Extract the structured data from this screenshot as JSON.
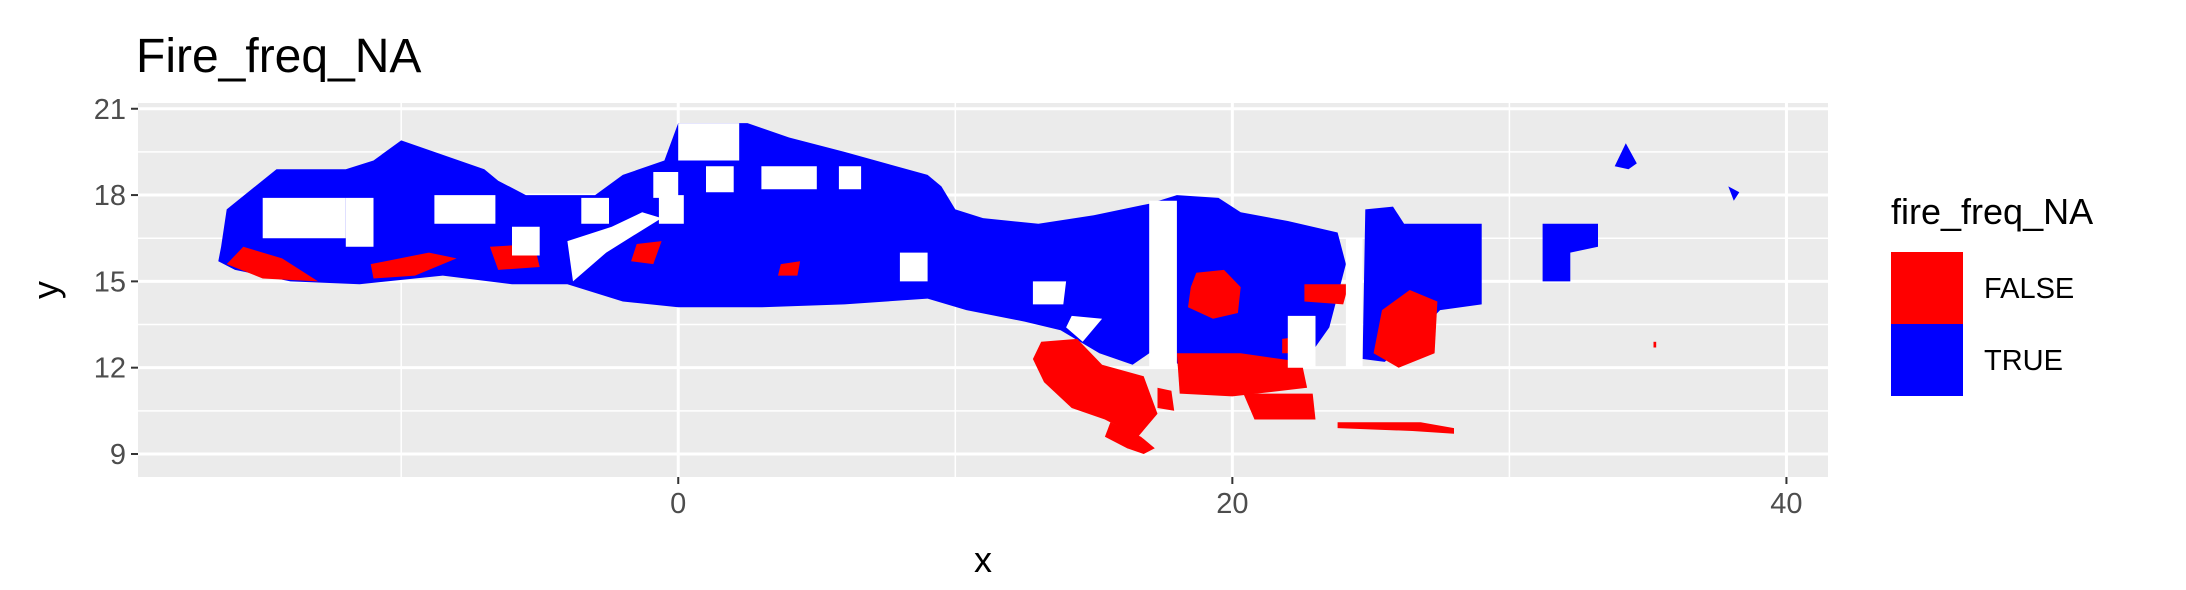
{
  "chart_data": {
    "type": "raster",
    "title": "Fire_freq_NA",
    "xlabel": "x",
    "ylabel": "y",
    "xlim": [
      -19.5,
      41.5
    ],
    "ylim": [
      8.2,
      21.2
    ],
    "x_ticks": [
      0,
      20,
      40
    ],
    "y_ticks": [
      9,
      12,
      15,
      18,
      21
    ],
    "grid": true,
    "legend": {
      "title": "fire_freq_NA",
      "placement": "right",
      "entries": [
        {
          "label": "FALSE",
          "color": "#ff0000"
        },
        {
          "label": "TRUE",
          "color": "#0000ff"
        }
      ]
    },
    "series": [
      {
        "name": "TRUE",
        "color": "#0000ff",
        "regions": [
          [
            [
              -16.5,
              16.2
            ],
            [
              -16.3,
              17.5
            ],
            [
              -14.5,
              18.9
            ],
            [
              -12,
              18.9
            ],
            [
              -11,
              19.2
            ],
            [
              -10,
              19.9
            ],
            [
              -7,
              18.9
            ],
            [
              -6.5,
              18.5
            ],
            [
              -5.5,
              18
            ],
            [
              -3,
              18
            ],
            [
              -2,
              18.7
            ],
            [
              -0.5,
              19.2
            ],
            [
              0,
              20.5
            ],
            [
              2.5,
              20.5
            ],
            [
              4,
              20
            ],
            [
              6,
              19.5
            ],
            [
              9,
              18.7
            ],
            [
              9.5,
              18.3
            ],
            [
              10,
              17.5
            ],
            [
              11,
              17.2
            ],
            [
              13,
              17
            ],
            [
              15,
              17.3
            ],
            [
              17,
              17.7
            ],
            [
              18,
              18
            ],
            [
              19.5,
              17.9
            ],
            [
              20.3,
              17.4
            ],
            [
              22,
              17.1
            ],
            [
              23.8,
              16.7
            ],
            [
              24.1,
              15.6
            ],
            [
              23.5,
              13.4
            ],
            [
              22.4,
              11.9
            ],
            [
              20,
              11.9
            ],
            [
              18.2,
              12
            ],
            [
              17.3,
              12.7
            ],
            [
              16.4,
              12.1
            ],
            [
              15.2,
              12.5
            ],
            [
              13.8,
              13.3
            ],
            [
              12.5,
              13.6
            ],
            [
              10.4,
              14
            ],
            [
              9,
              14.4
            ],
            [
              6,
              14.2
            ],
            [
              3,
              14.1
            ],
            [
              0,
              14.1
            ],
            [
              -2,
              14.3
            ],
            [
              -4,
              14.9
            ],
            [
              -6,
              14.9
            ],
            [
              -8.5,
              15.2
            ],
            [
              -11.5,
              14.9
            ],
            [
              -14,
              15
            ],
            [
              -16,
              15.4
            ],
            [
              -16.6,
              15.7
            ]
          ],
          [
            [
              24.8,
              17.5
            ],
            [
              25.8,
              17.6
            ],
            [
              26.2,
              17
            ],
            [
              29,
              17
            ],
            [
              29,
              14.2
            ],
            [
              27.5,
              14
            ],
            [
              26.5,
              13
            ],
            [
              25.5,
              12.2
            ],
            [
              24.7,
              12.3
            ]
          ],
          [
            [
              31.2,
              17
            ],
            [
              33.2,
              17
            ],
            [
              33.2,
              16.2
            ],
            [
              32.2,
              16
            ],
            [
              32.2,
              15
            ],
            [
              31.2,
              15
            ]
          ],
          [
            [
              34.2,
              19.8
            ],
            [
              34.6,
              19.1
            ],
            [
              34.3,
              18.9
            ],
            [
              33.8,
              19
            ]
          ],
          [
            [
              37.9,
              18.3
            ],
            [
              38.3,
              18.1
            ],
            [
              38.1,
              17.8
            ]
          ]
        ]
      },
      {
        "name": "FALSE",
        "color": "#ff0000",
        "regions": [
          [
            [
              -16.3,
              15.6
            ],
            [
              -15,
              15.1
            ],
            [
              -13,
              15
            ],
            [
              -14.3,
              15.8
            ],
            [
              -15.7,
              16.2
            ]
          ],
          [
            [
              -11.1,
              15.6
            ],
            [
              -9,
              16
            ],
            [
              -8,
              15.8
            ],
            [
              -9.5,
              15.2
            ],
            [
              -11,
              15.1
            ]
          ],
          [
            [
              -6.8,
              16.2
            ],
            [
              -5.2,
              16.3
            ],
            [
              -5,
              15.5
            ],
            [
              -6.5,
              15.4
            ]
          ],
          [
            [
              -1.5,
              16.3
            ],
            [
              -0.6,
              16.4
            ],
            [
              -0.9,
              15.6
            ],
            [
              -1.7,
              15.7
            ]
          ],
          [
            [
              3.7,
              15.6
            ],
            [
              4.4,
              15.7
            ],
            [
              4.3,
              15.2
            ],
            [
              3.6,
              15.2
            ]
          ],
          [
            [
              13.1,
              12.9
            ],
            [
              14.4,
              13
            ],
            [
              15.3,
              12.1
            ],
            [
              16.8,
              11.7
            ],
            [
              17.3,
              10.4
            ],
            [
              16.6,
              9.6
            ],
            [
              15.4,
              10.2
            ],
            [
              14.2,
              10.6
            ],
            [
              13.2,
              11.5
            ],
            [
              12.8,
              12.3
            ]
          ],
          [
            [
              15.6,
              10.1
            ],
            [
              16.7,
              9.6
            ],
            [
              17.2,
              9.2
            ],
            [
              16.8,
              9
            ],
            [
              16.2,
              9.2
            ],
            [
              15.4,
              9.6
            ]
          ],
          [
            [
              17.3,
              11.3
            ],
            [
              17.8,
              11.2
            ],
            [
              17.9,
              10.5
            ],
            [
              17.3,
              10.6
            ]
          ],
          [
            [
              17.3,
              13.7
            ],
            [
              17.8,
              13.7
            ],
            [
              17.7,
              13.4
            ],
            [
              17.3,
              13.4
            ]
          ],
          [
            [
              18.7,
              15.3
            ],
            [
              19.7,
              15.4
            ],
            [
              20.3,
              14.8
            ],
            [
              20.2,
              13.9
            ],
            [
              19.3,
              13.7
            ],
            [
              18.4,
              14.1
            ],
            [
              18.5,
              14.8
            ]
          ],
          [
            [
              18,
              12.5
            ],
            [
              20.3,
              12.5
            ],
            [
              22.5,
              12.2
            ],
            [
              22.7,
              11.3
            ],
            [
              20,
              11
            ],
            [
              18.1,
              11.1
            ]
          ],
          [
            [
              20.4,
              11.1
            ],
            [
              22.9,
              11.1
            ],
            [
              23,
              10.2
            ],
            [
              20.8,
              10.2
            ]
          ],
          [
            [
              23.8,
              10.1
            ],
            [
              26.8,
              10.1
            ],
            [
              28,
              9.9
            ],
            [
              28,
              9.7
            ],
            [
              26.5,
              9.8
            ],
            [
              23.8,
              9.9
            ]
          ],
          [
            [
              22.6,
              14.9
            ],
            [
              24.2,
              14.9
            ],
            [
              24,
              14.2
            ],
            [
              22.6,
              14.3
            ]
          ],
          [
            [
              21.8,
              13
            ],
            [
              22.6,
              13.1
            ],
            [
              22.4,
              12.5
            ],
            [
              21.8,
              12.5
            ]
          ],
          [
            [
              25.4,
              14
            ],
            [
              26.4,
              14.7
            ],
            [
              27.4,
              14.3
            ],
            [
              27.3,
              12.5
            ],
            [
              26,
              12
            ],
            [
              25.1,
              12.5
            ]
          ],
          [
            [
              35.2,
              12.9
            ],
            [
              35.3,
              12.9
            ],
            [
              35.3,
              12.7
            ],
            [
              35.2,
              12.7
            ]
          ]
        ]
      }
    ],
    "holes": [
      [
        [
          -15,
          17.9
        ],
        [
          -12,
          17.9
        ],
        [
          -12,
          16.5
        ],
        [
          -15,
          16.5
        ]
      ],
      [
        [
          -11,
          17.9
        ],
        [
          -11,
          16.2
        ],
        [
          -12,
          16.2
        ],
        [
          -12,
          17.9
        ]
      ],
      [
        [
          -8.8,
          18
        ],
        [
          -6.6,
          18
        ],
        [
          -6.6,
          17
        ],
        [
          -8.8,
          17
        ]
      ],
      [
        [
          -6,
          16.9
        ],
        [
          -5,
          16.9
        ],
        [
          -5,
          15.9
        ],
        [
          -6,
          15.9
        ]
      ],
      [
        [
          -3.5,
          17.9
        ],
        [
          -2.5,
          17.9
        ],
        [
          -2.5,
          17
        ],
        [
          -3.5,
          17
        ]
      ],
      [
        [
          -4,
          16.4
        ],
        [
          -2.4,
          16.9
        ],
        [
          -1.3,
          17.4
        ],
        [
          -0.6,
          17.2
        ],
        [
          -1.6,
          16.6
        ],
        [
          -2.6,
          16
        ],
        [
          -3.8,
          15
        ]
      ],
      [
        [
          -0.9,
          18.8
        ],
        [
          0,
          18.8
        ],
        [
          0,
          17.9
        ],
        [
          -0.9,
          17.9
        ]
      ],
      [
        [
          -0.7,
          18
        ],
        [
          0.2,
          18
        ],
        [
          0.2,
          17
        ],
        [
          -0.7,
          17
        ]
      ],
      [
        [
          0,
          20.5
        ],
        [
          2.2,
          20.5
        ],
        [
          2.2,
          19.2
        ],
        [
          0,
          19.2
        ]
      ],
      [
        [
          1,
          19
        ],
        [
          2,
          19
        ],
        [
          2,
          18.1
        ],
        [
          1,
          18.1
        ]
      ],
      [
        [
          3,
          19
        ],
        [
          5,
          19
        ],
        [
          5,
          18.2
        ],
        [
          3,
          18.2
        ]
      ],
      [
        [
          5.8,
          19
        ],
        [
          6.6,
          19
        ],
        [
          6.6,
          18.2
        ],
        [
          5.8,
          18.2
        ]
      ],
      [
        [
          8,
          16
        ],
        [
          9,
          16
        ],
        [
          9,
          15
        ],
        [
          8,
          15
        ]
      ],
      [
        [
          12.8,
          15
        ],
        [
          14,
          15
        ],
        [
          13.9,
          14.2
        ],
        [
          12.8,
          14.2
        ]
      ],
      [
        [
          14.2,
          13.8
        ],
        [
          15.3,
          13.7
        ],
        [
          14.6,
          12.9
        ],
        [
          14,
          13.4
        ]
      ],
      [
        [
          17,
          17.8
        ],
        [
          18,
          17.8
        ],
        [
          18,
          12
        ],
        [
          17,
          12
        ]
      ],
      [
        [
          22,
          13.8
        ],
        [
          23,
          13.8
        ],
        [
          23,
          12
        ],
        [
          22,
          12
        ]
      ],
      [
        [
          24.1,
          16.5
        ],
        [
          24.7,
          16.5
        ],
        [
          24.7,
          12
        ],
        [
          24.1,
          12
        ]
      ]
    ]
  }
}
